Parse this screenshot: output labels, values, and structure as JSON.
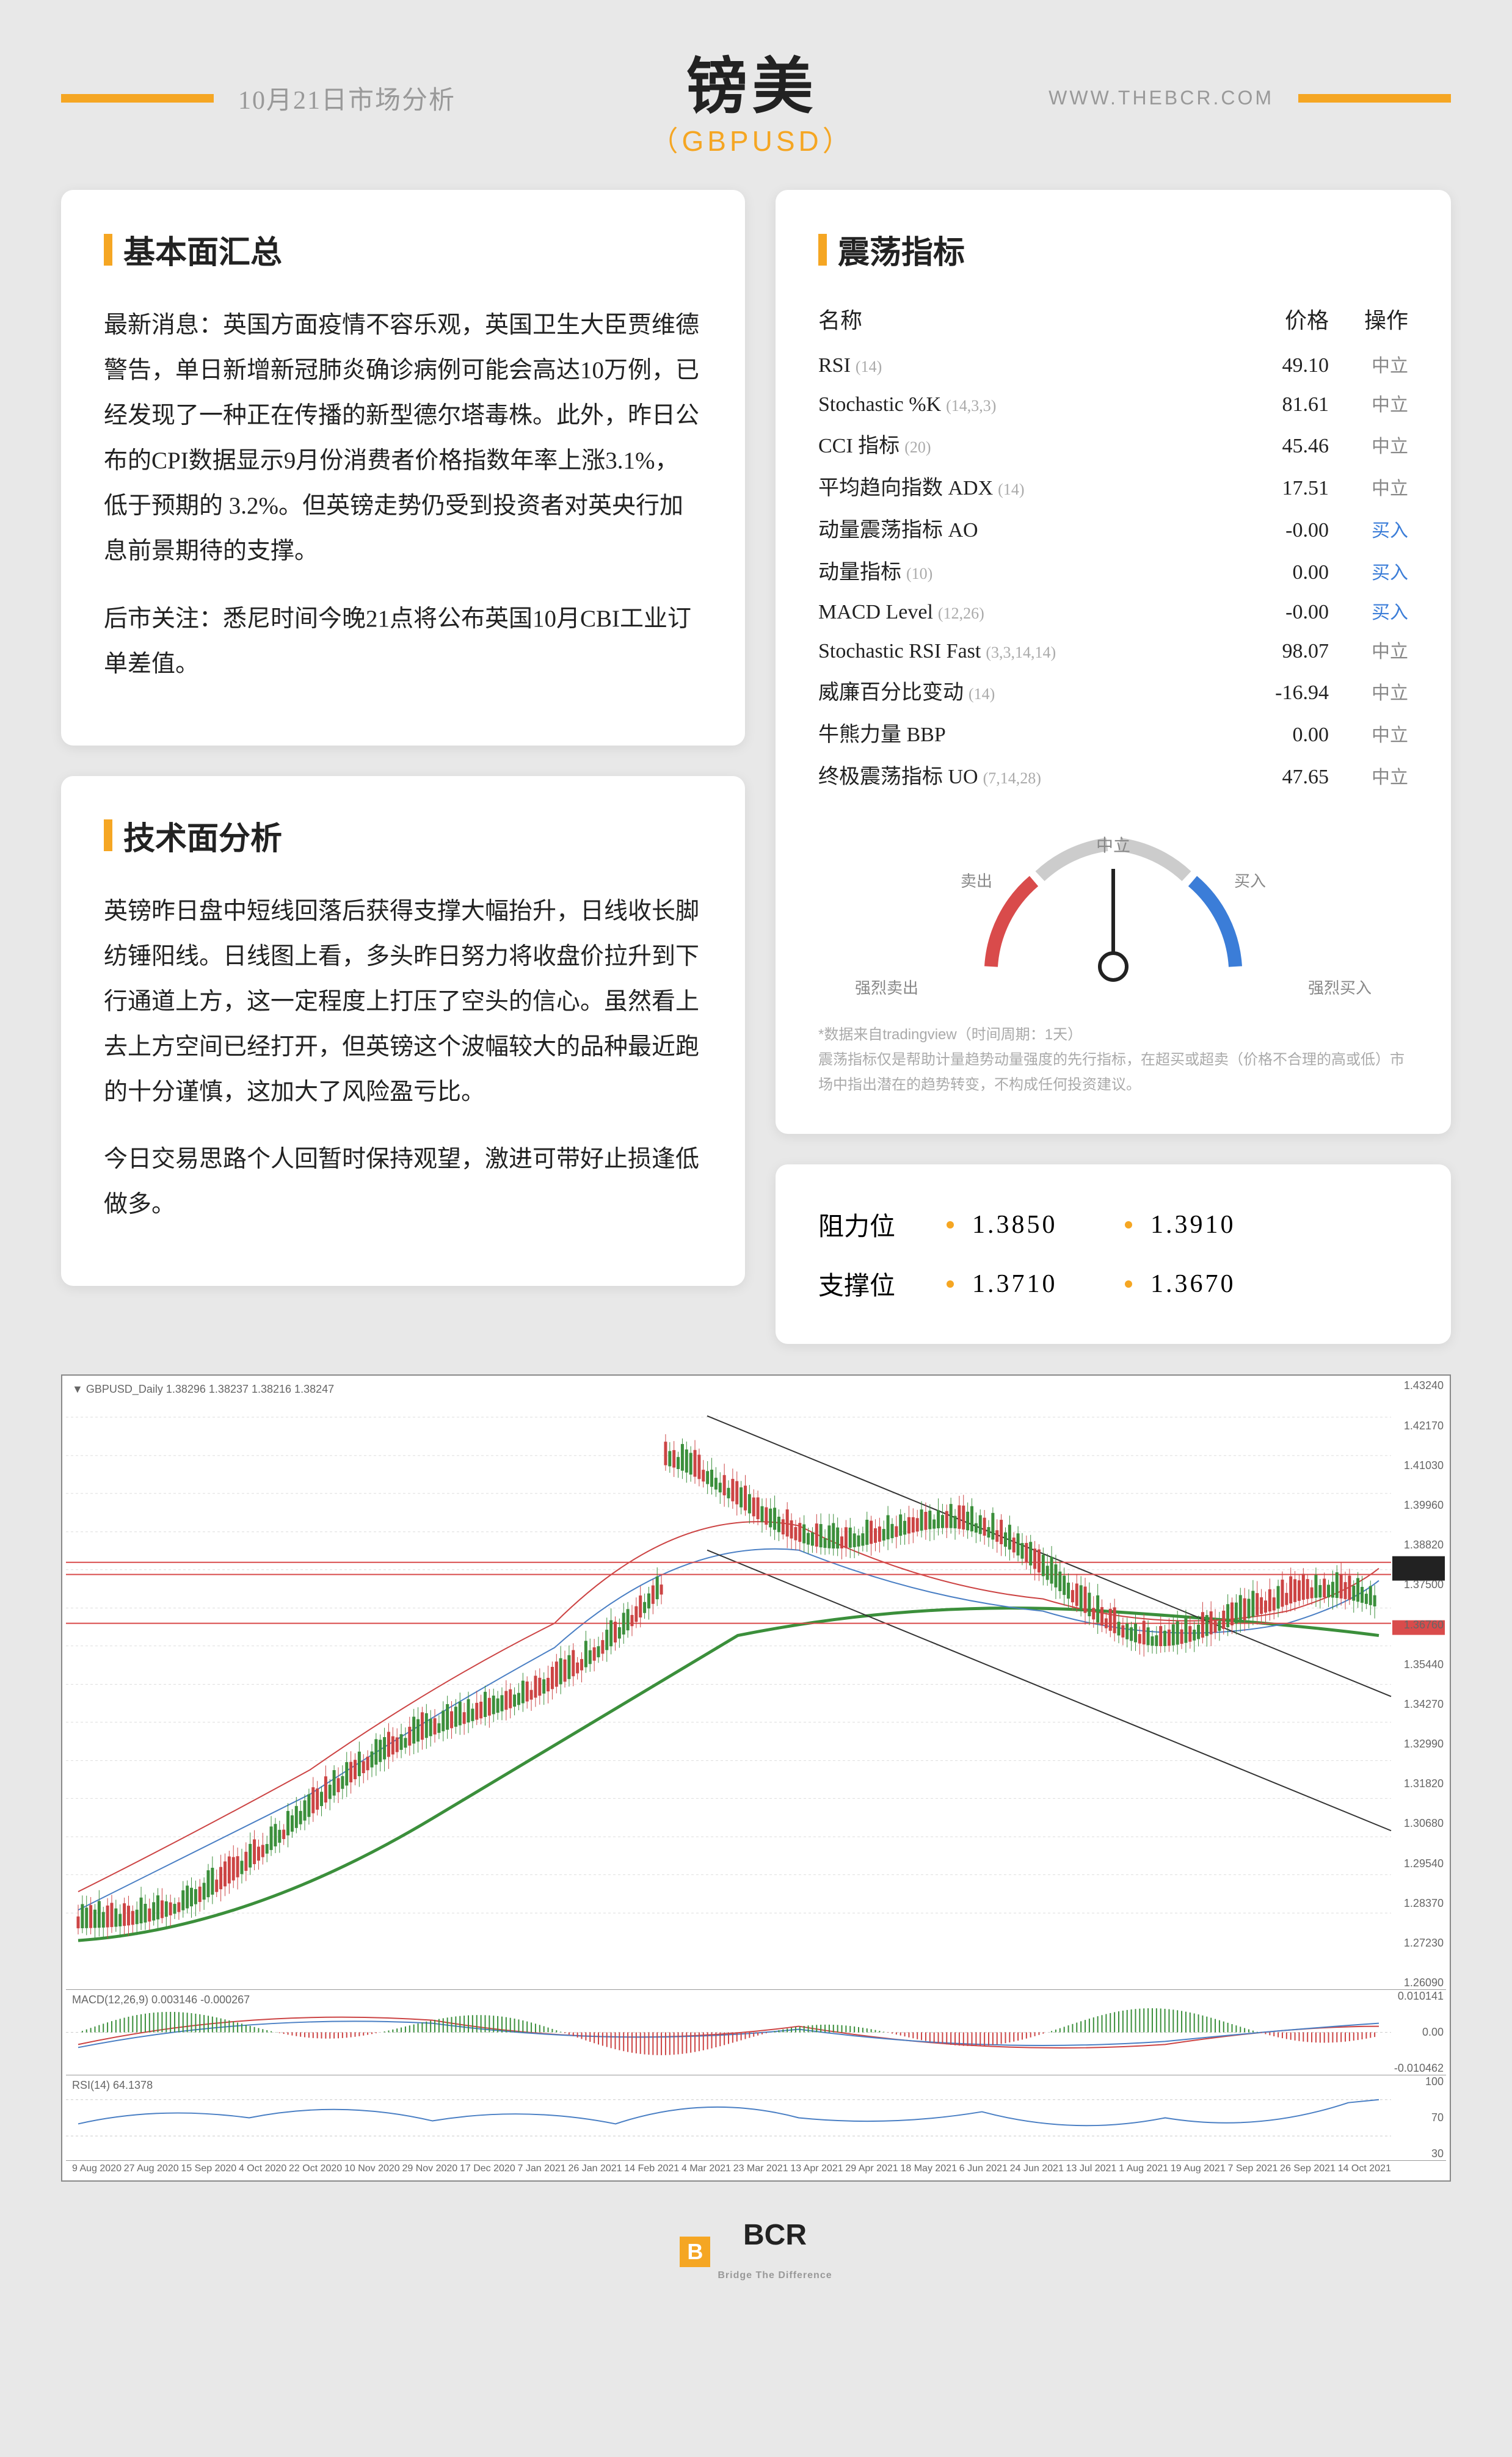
{
  "header": {
    "date": "10月21日市场分析",
    "title": "镑美",
    "subtitle": "（GBPUSD）",
    "website": "WWW.THEBCR.COM"
  },
  "fundamentals": {
    "title": "基本面汇总",
    "p1": "最新消息：英国方面疫情不容乐观，英国卫生大臣贾维德警告，单日新增新冠肺炎确诊病例可能会高达10万例，已经发现了一种正在传播的新型德尔塔毒株。此外，昨日公布的CPI数据显示9月份消费者价格指数年率上涨3.1%，低于预期的 3.2%。但英镑走势仍受到投资者对英央行加息前景期待的支撑。",
    "p2": "后市关注：悉尼时间今晚21点将公布英国10月CBI工业订单差值。"
  },
  "technical": {
    "title": "技术面分析",
    "p1": "英镑昨日盘中短线回落后获得支撑大幅抬升，日线收长脚纺锤阳线。日线图上看，多头昨日努力将收盘价拉升到下行通道上方，这一定程度上打压了空头的信心。虽然看上去上方空间已经打开，但英镑这个波幅较大的品种最近跑的十分谨慎，这加大了风险盈亏比。",
    "p2": "今日交易思路个人回暂时保持观望，激进可带好止损逢低做多。"
  },
  "oscillators": {
    "title": "震荡指标",
    "cols": {
      "name": "名称",
      "price": "价格",
      "action": "操作"
    },
    "rows": [
      {
        "name": "RSI",
        "param": "(14)",
        "price": "49.10",
        "action": "中立",
        "cls": "neutral"
      },
      {
        "name": "Stochastic %K",
        "param": "(14,3,3)",
        "price": "81.61",
        "action": "中立",
        "cls": "neutral"
      },
      {
        "name": "CCI 指标",
        "param": "(20)",
        "price": "45.46",
        "action": "中立",
        "cls": "neutral"
      },
      {
        "name": "平均趋向指数 ADX",
        "param": "(14)",
        "price": "17.51",
        "action": "中立",
        "cls": "neutral"
      },
      {
        "name": "动量震荡指标 AO",
        "param": "",
        "price": "-0.00",
        "action": "买入",
        "cls": "buy"
      },
      {
        "name": "动量指标",
        "param": "(10)",
        "price": "0.00",
        "action": "买入",
        "cls": "buy"
      },
      {
        "name": "MACD Level",
        "param": "(12,26)",
        "price": "-0.00",
        "action": "买入",
        "cls": "buy"
      },
      {
        "name": "Stochastic RSI Fast",
        "param": "(3,3,14,14)",
        "price": "98.07",
        "action": "中立",
        "cls": "neutral"
      },
      {
        "name": "威廉百分比变动",
        "param": "(14)",
        "price": "-16.94",
        "action": "中立",
        "cls": "neutral"
      },
      {
        "name": "牛熊力量 BBP",
        "param": "",
        "price": "0.00",
        "action": "中立",
        "cls": "neutral"
      },
      {
        "name": "终极震荡指标 UO",
        "param": "(7,14,28)",
        "price": "47.65",
        "action": "中立",
        "cls": "neutral"
      }
    ],
    "gauge": {
      "sell": "卖出",
      "neutral": "中立",
      "buy": "买入",
      "strong_sell": "强烈卖出",
      "strong_buy": "强烈买入",
      "arc_colors": {
        "sell": "#d94b4b",
        "neutral_l": "#cccccc",
        "neutral_r": "#cccccc",
        "buy": "#3b7dd8"
      },
      "needle_angle": 0
    },
    "note1": "*数据来自tradingview（时间周期：1天）",
    "note2": "震荡指标仅是帮助计量趋势动量强度的先行指标，在超买或超卖（价格不合理的高或低）市场中指出潜在的趋势转变，不构成任何投资建议。"
  },
  "levels": {
    "resistance": {
      "label": "阻力位",
      "v1": "1.3850",
      "v2": "1.3910"
    },
    "support": {
      "label": "支撑位",
      "v1": "1.3710",
      "v2": "1.3670"
    }
  },
  "chart": {
    "header_text": "▼ GBPUSD_Daily 1.38296 1.38237 1.38216 1.38247",
    "macd_text": "MACD(12,26,9) 0.003146 -0.000267",
    "rsi_text": "RSI(14) 64.1378",
    "y_labels": [
      "1.43240",
      "1.42170",
      "1.41030",
      "1.39960",
      "1.38820",
      "1.37500",
      "1.36760",
      "1.35440",
      "1.34270",
      "1.32990",
      "1.31820",
      "1.30680",
      "1.29540",
      "1.28370",
      "1.27230",
      "1.26090"
    ],
    "macd_y": [
      "0.010141",
      "0.00",
      "-0.010462"
    ],
    "rsi_y": [
      "100",
      "70",
      "30"
    ],
    "x_labels": [
      "9 Aug 2020",
      "27 Aug 2020",
      "15 Sep 2020",
      "4 Oct 2020",
      "22 Oct 2020",
      "10 Nov 2020",
      "29 Nov 2020",
      "17 Dec 2020",
      "7 Jan 2021",
      "26 Jan 2021",
      "14 Feb 2021",
      "4 Mar 2021",
      "23 Mar 2021",
      "13 Apr 2021",
      "29 Apr 2021",
      "18 May 2021",
      "6 Jun 2021",
      "24 Jun 2021",
      "13 Jul 2021",
      "1 Aug 2021",
      "19 Aug 2021",
      "7 Sep 2021",
      "26 Sep 2021",
      "14 Oct 2021"
    ],
    "channel_color": "#333333",
    "resistance_line_color": "#d94b4b",
    "support_line_color": "#d94b4b",
    "ma_fast_color": "#3b8f3b",
    "ma_slow_color": "#3b8f3b",
    "bg": "#ffffff"
  },
  "footer": {
    "brand": "BCR",
    "tagline": "Bridge The Difference"
  }
}
